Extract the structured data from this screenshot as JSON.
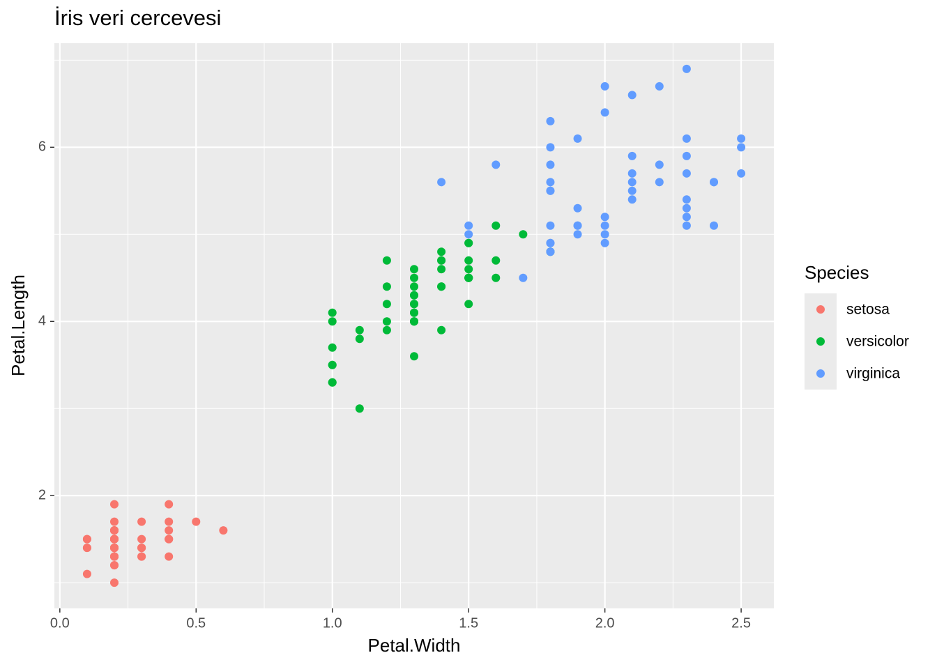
{
  "chart_data": {
    "type": "scatter",
    "title": "İris veri cercevesi",
    "x_label": "Petal.Width",
    "y_label": "Petal.Length",
    "xlim": [
      -0.02,
      2.62
    ],
    "ylim": [
      0.705,
      7.195
    ],
    "xticks": [
      {
        "value": 0,
        "label": "0.0"
      },
      0.5,
      {
        "value": 1,
        "label": "1.0"
      },
      1.5,
      {
        "value": 2,
        "label": "2.0"
      },
      2.5
    ],
    "yticks": [
      2,
      4,
      6
    ],
    "grid": true,
    "legend_title": "Species",
    "legend_position": "right",
    "series": [
      {
        "name": "setosa",
        "color": "#F8766D",
        "x": [
          0.2,
          0.2,
          0.2,
          0.2,
          0.2,
          0.4,
          0.3,
          0.2,
          0.2,
          0.1,
          0.2,
          0.2,
          0.1,
          0.1,
          0.2,
          0.4,
          0.4,
          0.3,
          0.3,
          0.3,
          0.2,
          0.4,
          0.2,
          0.5,
          0.2,
          0.2,
          0.4,
          0.2,
          0.2,
          0.2,
          0.2,
          0.4,
          0.1,
          0.2,
          0.2,
          0.2,
          0.2,
          0.1,
          0.2,
          0.2,
          0.3,
          0.3,
          0.2,
          0.6,
          0.4,
          0.3,
          0.2,
          0.2,
          0.2,
          0.2
        ],
        "values": [
          1.4,
          1.4,
          1.3,
          1.5,
          1.4,
          1.7,
          1.4,
          1.5,
          1.4,
          1.5,
          1.5,
          1.6,
          1.4,
          1.1,
          1.2,
          1.5,
          1.3,
          1.4,
          1.7,
          1.5,
          1.7,
          1.5,
          1.0,
          1.7,
          1.9,
          1.6,
          1.6,
          1.5,
          1.4,
          1.6,
          1.6,
          1.5,
          1.5,
          1.4,
          1.5,
          1.2,
          1.3,
          1.4,
          1.3,
          1.5,
          1.3,
          1.3,
          1.3,
          1.6,
          1.9,
          1.4,
          1.6,
          1.4,
          1.5,
          1.4
        ]
      },
      {
        "name": "versicolor",
        "color": "#00BA38",
        "x": [
          1.4,
          1.5,
          1.5,
          1.3,
          1.5,
          1.3,
          1.6,
          1.0,
          1.3,
          1.4,
          1.0,
          1.5,
          1.0,
          1.4,
          1.3,
          1.4,
          1.5,
          1.0,
          1.5,
          1.1,
          1.8,
          1.3,
          1.5,
          1.2,
          1.3,
          1.4,
          1.4,
          1.7,
          1.5,
          1.0,
          1.1,
          1.0,
          1.2,
          1.6,
          1.5,
          1.6,
          1.5,
          1.3,
          1.3,
          1.3,
          1.2,
          1.4,
          1.2,
          1.0,
          1.3,
          1.2,
          1.3,
          1.3,
          1.1,
          1.3
        ],
        "values": [
          4.7,
          4.5,
          4.9,
          4.0,
          4.6,
          4.5,
          4.7,
          3.3,
          4.6,
          3.9,
          3.5,
          4.2,
          4.0,
          4.7,
          3.6,
          4.4,
          4.5,
          4.1,
          4.5,
          3.9,
          4.8,
          4.0,
          4.9,
          4.7,
          4.3,
          4.4,
          4.8,
          5.0,
          4.5,
          3.5,
          3.8,
          3.7,
          3.9,
          5.1,
          4.5,
          4.5,
          4.7,
          4.4,
          4.1,
          4.0,
          4.4,
          4.6,
          4.0,
          3.3,
          4.2,
          4.2,
          4.2,
          4.3,
          3.0,
          4.1
        ]
      },
      {
        "name": "virginica",
        "color": "#619CFF",
        "x": [
          2.5,
          1.9,
          2.1,
          1.8,
          2.2,
          2.1,
          1.7,
          1.8,
          1.8,
          2.5,
          2.0,
          1.9,
          2.1,
          2.0,
          2.4,
          2.3,
          1.8,
          2.2,
          2.3,
          1.5,
          2.3,
          2.0,
          2.0,
          1.8,
          2.1,
          1.8,
          1.8,
          1.8,
          2.1,
          1.6,
          1.9,
          2.0,
          2.2,
          1.5,
          1.4,
          2.3,
          2.4,
          1.8,
          1.8,
          2.1,
          2.4,
          2.3,
          1.9,
          2.3,
          2.5,
          2.3,
          1.9,
          2.0,
          2.3,
          1.8
        ],
        "values": [
          6.0,
          5.1,
          5.9,
          5.6,
          5.8,
          6.6,
          4.5,
          6.3,
          5.8,
          6.1,
          5.1,
          5.3,
          5.5,
          5.0,
          5.1,
          5.3,
          5.5,
          6.7,
          6.9,
          5.0,
          5.7,
          4.9,
          6.7,
          4.9,
          5.7,
          6.0,
          4.8,
          4.9,
          5.6,
          5.8,
          6.1,
          6.4,
          5.6,
          5.1,
          5.6,
          6.1,
          5.6,
          5.5,
          4.8,
          5.4,
          5.6,
          5.1,
          5.1,
          5.9,
          5.7,
          5.2,
          5.0,
          5.2,
          5.4,
          5.1
        ]
      }
    ]
  }
}
